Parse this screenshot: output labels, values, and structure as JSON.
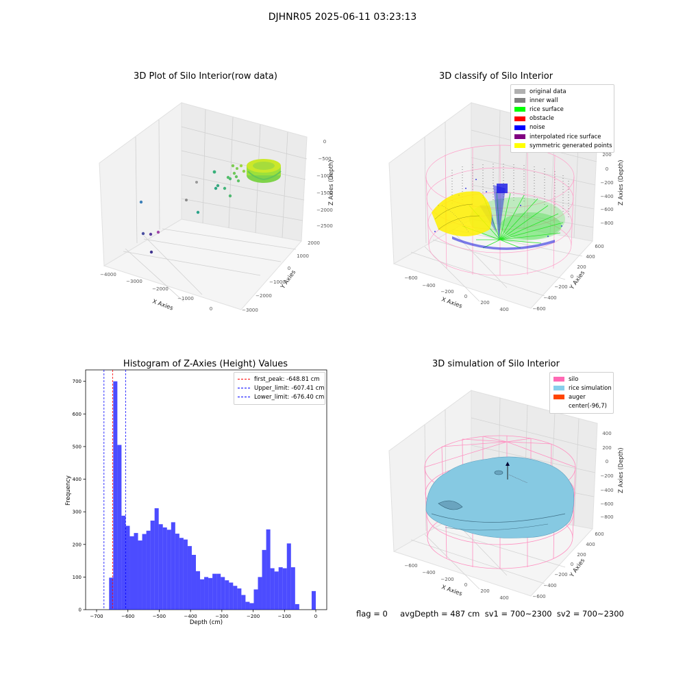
{
  "suptitle": "DJHNR05 2025-06-11 03:23:13",
  "plots": {
    "raw": {
      "title": "3D Plot of Silo Interior(row data)",
      "xlabel": "X Axies",
      "ylabel": "Y Axies",
      "zlabel": "Z Axies (Depth)",
      "xticks": [
        "−4000",
        "−3000",
        "−2000",
        "−1000",
        "0"
      ],
      "yticks": [
        "2000",
        "1000",
        "0",
        "−1000",
        "−2000",
        "−3000"
      ],
      "zticks": [
        "0",
        "−500",
        "−1000",
        "−1500",
        "−2000",
        "−2500"
      ]
    },
    "classify": {
      "title": "3D classify of Silo Interior",
      "xlabel": "X Axies",
      "ylabel": "Y Axies",
      "zlabel": "Z Axies (Depth)",
      "xticks": [
        "−600",
        "−400",
        "−200",
        "0",
        "200",
        "400"
      ],
      "yticks": [
        "600",
        "400",
        "200",
        "0",
        "−200",
        "−400",
        "−600"
      ],
      "zticks": [
        "400",
        "200",
        "0",
        "−200",
        "−400",
        "−600",
        "−800"
      ],
      "legend": [
        {
          "label": "original data",
          "color": "#b0b0b0"
        },
        {
          "label": "inner wall",
          "color": "#808080"
        },
        {
          "label": "rice surface",
          "color": "#00ff00"
        },
        {
          "label": "obstacle",
          "color": "#ff0000"
        },
        {
          "label": "noise",
          "color": "#0000ff"
        },
        {
          "label": "interpolated rice surface",
          "color": "#800080"
        },
        {
          "label": "symmetric generated points",
          "color": "#ffff00"
        }
      ]
    },
    "simulation": {
      "title": "3D simulation of Silo Interior",
      "xlabel": "X Axies",
      "ylabel": "Y Axies",
      "zlabel": "Z Axies (Depth)",
      "xticks": [
        "−600",
        "−400",
        "−200",
        "0",
        "200",
        "400"
      ],
      "yticks": [
        "600",
        "400",
        "200",
        "0",
        "−200",
        "−400",
        "−600"
      ],
      "zticks": [
        "400",
        "200",
        "0",
        "−200",
        "−400",
        "−600",
        "−800"
      ],
      "legend": [
        {
          "label": "silo",
          "color": "#ff69b4"
        },
        {
          "label": "rice simulation",
          "color": "#87ceeb"
        },
        {
          "label": "auger",
          "color": "#ff4500"
        },
        {
          "label": "center(-96,7)",
          "color": ""
        }
      ]
    }
  },
  "chart_data": {
    "type": "bar",
    "title": "Histogram of Z-Axies (Height) Values",
    "xlabel": "Depth (cm)",
    "ylabel": "Frequency",
    "xlim": [
      -735,
      35
    ],
    "ylim": [
      0,
      735
    ],
    "xticks": [
      -700,
      -600,
      -500,
      -400,
      -300,
      -200,
      -100,
      0
    ],
    "yticks": [
      0,
      100,
      200,
      300,
      400,
      500,
      600,
      700
    ],
    "bin_width": 13.2,
    "bin_starts": [
      -660,
      -646.8,
      -633.6,
      -620.4,
      -607.2,
      -594,
      -580.8,
      -567.6,
      -554.4,
      -541.2,
      -528,
      -514.8,
      -501.6,
      -488.4,
      -475.2,
      -462,
      -448.8,
      -435.6,
      -422.4,
      -409.2,
      -396,
      -382.8,
      -369.6,
      -356.4,
      -343.2,
      -330,
      -316.8,
      -303.6,
      -290.4,
      -277.2,
      -264,
      -250.8,
      -237.6,
      -224.4,
      -211.2,
      -198,
      -184.8,
      -171.6,
      -158.4,
      -145.2,
      -132,
      -118.8,
      -105.6,
      -92.4,
      -79.2,
      -66,
      -52.8,
      -39.6,
      -26.4,
      -13.2
    ],
    "counts": [
      98,
      700,
      505,
      288,
      257,
      225,
      235,
      212,
      232,
      242,
      273,
      311,
      262,
      252,
      245,
      268,
      233,
      220,
      215,
      195,
      168,
      118,
      93,
      100,
      97,
      110,
      110,
      100,
      90,
      83,
      73,
      65,
      45,
      24,
      20,
      62,
      100,
      183,
      246,
      127,
      117,
      130,
      127,
      203,
      130,
      17,
      0,
      0,
      0,
      57
    ],
    "bar_color": "#0000ff",
    "reference_lines": [
      {
        "label": "first_peak: -648.81 cm",
        "x": -648.81,
        "color": "#ff0000"
      },
      {
        "label": "Upper_limit: -607.41 cm",
        "x": -607.41,
        "color": "#0000ff"
      },
      {
        "label": "Lower_limit: -676.40 cm",
        "x": -676.4,
        "color": "#0000ff"
      }
    ],
    "legend_position": "top-right"
  },
  "footer": "flag = 0     avgDepth = 487 cm  sv1 = 700~2300  sv2 = 700~2300"
}
